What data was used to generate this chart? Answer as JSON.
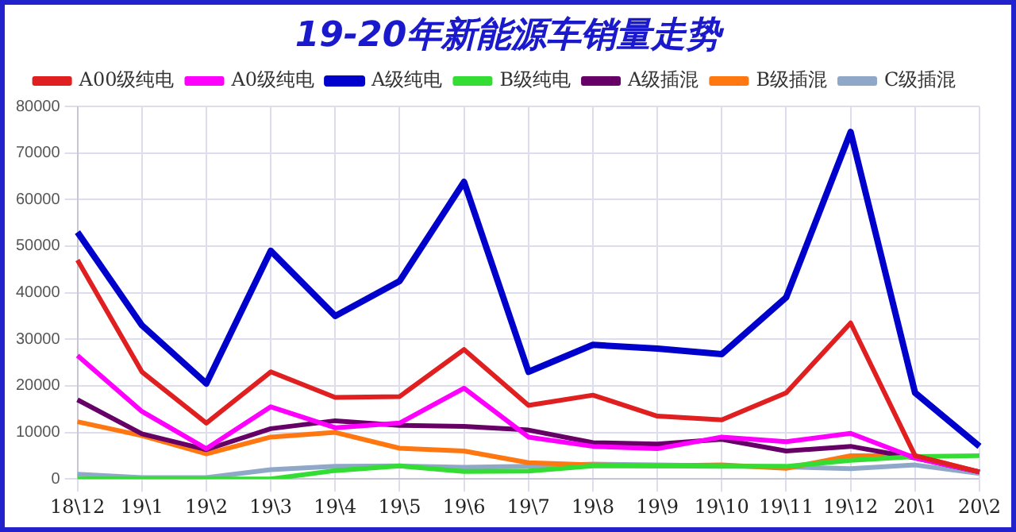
{
  "chart_data": {
    "type": "line",
    "title": "19-20年新能源车销量走势",
    "categories": [
      "18\\12",
      "19\\1",
      "19\\2",
      "19\\3",
      "19\\4",
      "19\\5",
      "19\\6",
      "19\\7",
      "19\\8",
      "19\\9",
      "19\\10",
      "19\\11",
      "19\\12",
      "20\\1",
      "20\\2"
    ],
    "series": [
      {
        "name": "A00级纯电",
        "color": "#e02020",
        "values": [
          47000,
          23000,
          12000,
          23000,
          17500,
          17700,
          27800,
          15800,
          18000,
          13500,
          12700,
          18500,
          33500,
          5000,
          1500
        ]
      },
      {
        "name": "A0级纯电",
        "color": "#ff00ff",
        "values": [
          26500,
          14500,
          6500,
          15500,
          11000,
          12000,
          19500,
          9000,
          7000,
          6500,
          9000,
          8000,
          9800,
          4500,
          1500
        ]
      },
      {
        "name": "A级纯电",
        "color": "#0000cc",
        "values": [
          53000,
          33000,
          20500,
          49000,
          35000,
          42500,
          63800,
          23000,
          28800,
          28000,
          26800,
          39000,
          74500,
          18500,
          7000
        ]
      },
      {
        "name": "B级纯电",
        "color": "#33dd33",
        "values": [
          0,
          0,
          0,
          0,
          1800,
          2800,
          1600,
          1700,
          2800,
          2800,
          2700,
          2700,
          4000,
          4800,
          5000
        ]
      },
      {
        "name": "A级插混",
        "color": "#660066",
        "values": [
          17000,
          9700,
          6300,
          10800,
          12500,
          11500,
          11300,
          10500,
          7800,
          7500,
          8500,
          6000,
          7000,
          4500,
          1500
        ]
      },
      {
        "name": "B级插混",
        "color": "#ff7711",
        "values": [
          12300,
          9300,
          5400,
          9000,
          10000,
          6600,
          6000,
          3500,
          3000,
          2800,
          3000,
          2300,
          5000,
          5000,
          1500
        ]
      },
      {
        "name": "C级插混",
        "color": "#8fa8c8",
        "values": [
          1000,
          300,
          300,
          2000,
          2700,
          2800,
          2500,
          2700,
          3200,
          3000,
          2800,
          2600,
          2200,
          3000,
          1200
        ]
      }
    ],
    "ylim": [
      0,
      80000
    ],
    "yticks": [
      0,
      10000,
      20000,
      30000,
      40000,
      50000,
      60000,
      70000,
      80000
    ],
    "grid": true,
    "legend": "top",
    "marker": "none"
  }
}
